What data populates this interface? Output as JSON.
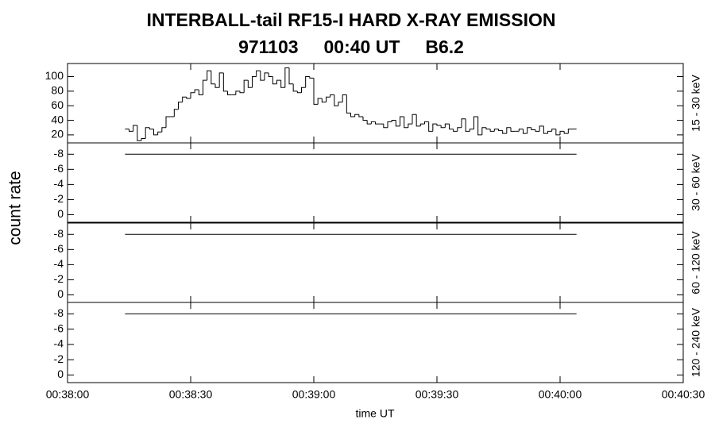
{
  "figure": {
    "title": "INTERBALL-tail  RF15-I  HARD  X-RAY  EMISSION",
    "subtitle": "971103     00:40 UT     B6.2",
    "ylabel": "count rate",
    "xlabel": "time UT",
    "xlim": [
      0,
      150
    ],
    "xticks": [
      {
        "value": 0,
        "label": "00:38:00"
      },
      {
        "value": 30,
        "label": "00:38:30"
      },
      {
        "value": 60,
        "label": "00:39:00"
      },
      {
        "value": 90,
        "label": "00:39:30"
      },
      {
        "value": 120,
        "label": "00:40:00"
      },
      {
        "value": 150,
        "label": "00:40:30"
      }
    ]
  },
  "chart_data": [
    {
      "type": "histogram",
      "channel": "15 - 30 keV",
      "color": "#000000",
      "ylim": [
        9,
        118
      ],
      "yticks": [
        20,
        40,
        60,
        80,
        100
      ],
      "bins": [
        14,
        15,
        16,
        17,
        18,
        19,
        20,
        21,
        22,
        23,
        24,
        25,
        26,
        27,
        28,
        29,
        30,
        31,
        32,
        33,
        34,
        35,
        36,
        37,
        38,
        39,
        40,
        41,
        42,
        43,
        44,
        45,
        46,
        47,
        48,
        49,
        50,
        51,
        52,
        53,
        54,
        55,
        56,
        57,
        58,
        59,
        60,
        61,
        62,
        63,
        64,
        65,
        66,
        67,
        68,
        69,
        70,
        71,
        72,
        73,
        74,
        75,
        76,
        77,
        78,
        79,
        80,
        81,
        82,
        83,
        84,
        85,
        86,
        87,
        88,
        89,
        90,
        91,
        92,
        93,
        94,
        95,
        96,
        97,
        98,
        99,
        100,
        101,
        102,
        103,
        104,
        105,
        106,
        107,
        108,
        109,
        110,
        111,
        112,
        113,
        114,
        115,
        116,
        117,
        118,
        119,
        120,
        121,
        122,
        123,
        124
      ],
      "values": [
        28,
        25,
        33,
        12,
        15,
        30,
        28,
        20,
        24,
        30,
        45,
        45,
        55,
        65,
        72,
        70,
        78,
        82,
        75,
        95,
        108,
        90,
        85,
        105,
        80,
        75,
        75,
        80,
        78,
        95,
        85,
        100,
        108,
        95,
        105,
        100,
        90,
        95,
        85,
        112,
        90,
        80,
        78,
        85,
        100,
        98,
        62,
        70,
        65,
        72,
        75,
        60,
        65,
        75,
        50,
        45,
        48,
        45,
        40,
        35,
        38,
        35,
        35,
        30,
        38,
        40,
        32,
        45,
        30,
        35,
        48,
        32,
        35,
        38,
        25,
        35,
        33,
        30,
        35,
        28,
        25,
        30,
        42,
        25,
        28,
        45,
        20,
        30,
        28,
        25,
        28,
        26,
        22,
        30,
        25,
        25,
        28,
        22,
        30,
        27,
        25,
        32,
        22,
        25,
        28,
        20,
        25,
        22,
        28,
        28
      ]
    },
    {
      "type": "line",
      "channel": "30 - 60 keV",
      "color": "#000000",
      "ylim": [
        1,
        -9.5
      ],
      "yticks": [
        -8,
        -6,
        -4,
        -2,
        0
      ],
      "x": [
        14,
        124
      ],
      "values": [
        -8,
        -8
      ]
    },
    {
      "type": "line",
      "channel": "60 - 120 keV",
      "color": "#000000",
      "ylim": [
        1,
        -9.5
      ],
      "yticks": [
        -8,
        -6,
        -4,
        -2,
        0
      ],
      "x": [
        14,
        124
      ],
      "values": [
        -8,
        -8
      ]
    },
    {
      "type": "line",
      "channel": "120 - 240 keV",
      "color": "#000000",
      "ylim": [
        1,
        -9.5
      ],
      "yticks": [
        -8,
        -6,
        -4,
        -2,
        0
      ],
      "x": [
        14,
        124
      ],
      "values": [
        -8,
        -8
      ]
    }
  ]
}
